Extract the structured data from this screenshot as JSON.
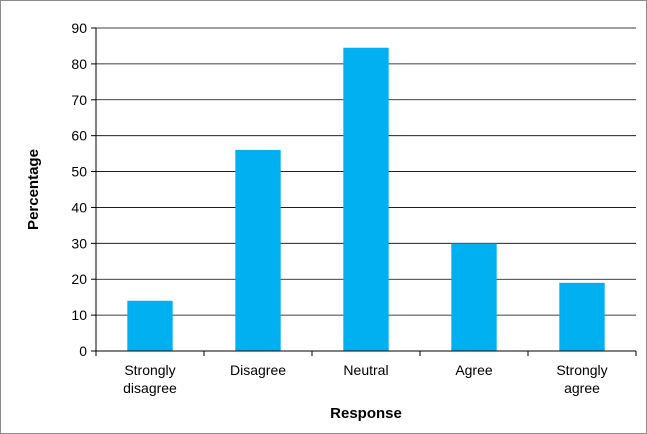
{
  "chart_data": {
    "type": "bar",
    "title": "",
    "xlabel": "Response",
    "ylabel": "Percentage",
    "categories": [
      "Strongly disagree",
      "Disagree",
      "Neutral",
      "Agree",
      "Strongly agree"
    ],
    "category_lines": [
      [
        "Strongly",
        "disagree"
      ],
      [
        "Disagree"
      ],
      [
        "Neutral"
      ],
      [
        "Agree"
      ],
      [
        "Strongly",
        "agree"
      ]
    ],
    "values": [
      14,
      56,
      84.5,
      30,
      19
    ],
    "ylim": [
      0,
      90
    ],
    "yticks": [
      0,
      10,
      20,
      30,
      40,
      50,
      60,
      70,
      80,
      90
    ],
    "grid": true,
    "legend": "none",
    "bar_color": "#00B0F0"
  }
}
